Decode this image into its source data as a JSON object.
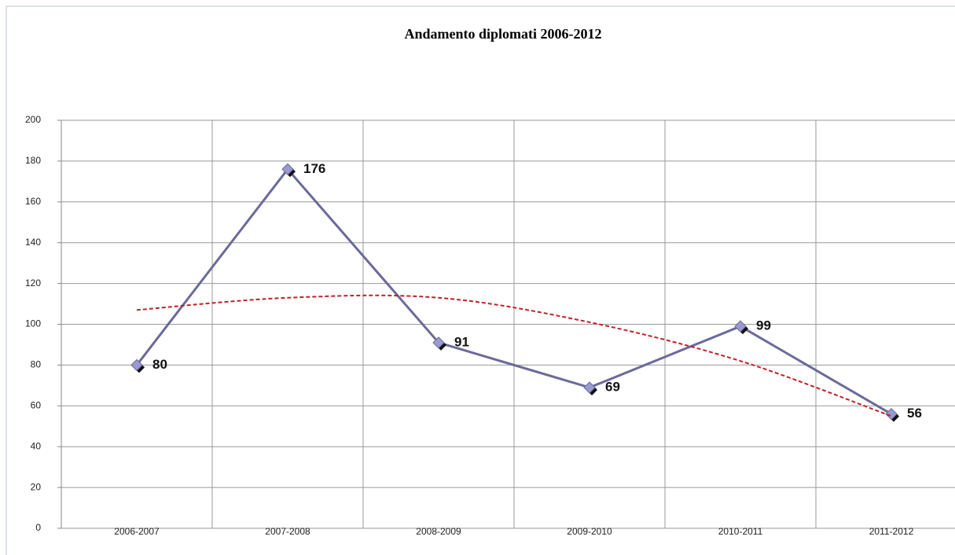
{
  "chart_data": {
    "type": "line",
    "title": "Andamento diplomati 2006-2012",
    "categories": [
      "2006-2007",
      "2007-2008",
      "2008-2009",
      "2009-2010",
      "2010-2011",
      "2011-2012"
    ],
    "series": [
      {
        "color": "#6b6a9a",
        "values": [
          80,
          176,
          91,
          69,
          99,
          56
        ]
      },
      {
        "color": "#c0202a",
        "values": [
          107,
          113,
          113,
          101,
          82,
          55
        ],
        "dashed": true
      }
    ],
    "ylim": [
      0,
      200
    ],
    "yticks": [
      0,
      20,
      40,
      60,
      80,
      100,
      120,
      140,
      160,
      180,
      200
    ],
    "grid": true
  }
}
